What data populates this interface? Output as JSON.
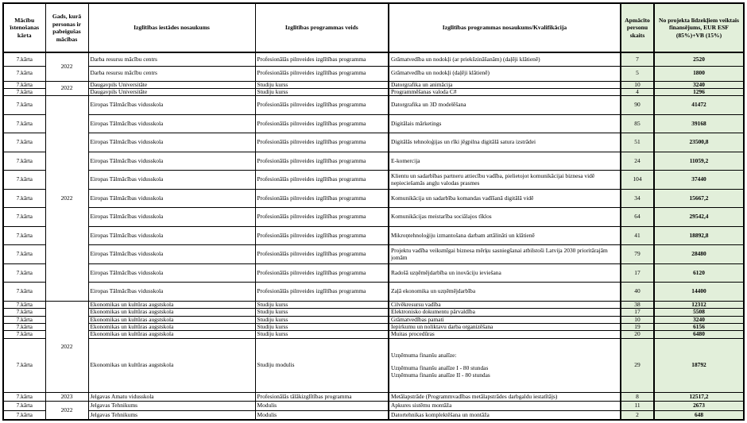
{
  "headers": {
    "stage": "Mācību īstenošanas kārta",
    "year": "Gads, kurā personas ir pabeigušas mācības",
    "institution": "Izglītības iestādes nosaukums",
    "program_type": "Izglītības programmas veids",
    "program_name": "Izglītības programmas nosaukums/Kvalifikācija",
    "persons": "Apmācīto personu skaits",
    "funding": "No projekta līdzekļiem veiktais finansējums, EUR ESF (85%)+VB (15%)"
  },
  "colors": {
    "highlight_column": "#e2efda"
  },
  "groups": [
    {
      "year": "2022",
      "rows": [
        {
          "stage": "7.kārta",
          "institution": "Darba resursu mācību centrs",
          "program_type": "Profesionālās pilnveides izglītības programma",
          "program_name": "Grāmatvedība un nodokļi (ar priekšzināšanām) (daļēji klātienē)",
          "persons": "7",
          "funding": "2520"
        },
        {
          "stage": "7.kārta",
          "institution": "Darba resursu mācību centrs",
          "program_type": "Profesionālās pilnveides izglītības programma",
          "program_name": "Grāmatvedība un nodokļi (daļēji klātienē)",
          "persons": "5",
          "funding": "1800"
        }
      ]
    },
    {
      "year": "2022",
      "rows": [
        {
          "stage": "7.kārta",
          "institution": "Daugavpils Universitāte",
          "program_type": "Studiju kurss",
          "program_name": "Datorgrafika un animācija",
          "persons": "10",
          "funding": "3240"
        },
        {
          "stage": "7.kārta",
          "institution": "Daugavpils Universitāte",
          "program_type": "Studiju kurss",
          "program_name": "Programmēšanas valoda C#",
          "persons": "4",
          "funding": "1296"
        }
      ]
    },
    {
      "year": "2022",
      "rows": [
        {
          "stage": "7.kārta",
          "institution": "Eiropas Tālmācības vidusskola",
          "program_type": "Profesionālās pilnveides izglītības programma",
          "program_name": "Datorgrafika un 3D modelēšana",
          "persons": "90",
          "funding": "41472"
        },
        {
          "stage": "7.kārta",
          "institution": "Eiropas Tālmācības vidusskola",
          "program_type": "Profesionālās pilnveides izglītības programma",
          "program_name": "Digitālais mārketings",
          "persons": "85",
          "funding": "39168"
        },
        {
          "stage": "7.kārta",
          "institution": "Eiropas Tālmācības vidusskola",
          "program_type": "Profesionālās pilnveides izglītības programma",
          "program_name": "Digitālās tehnoloģijas un rīki jēgpilna digitālā satura izstrādei",
          "persons": "51",
          "funding": "23500,8"
        },
        {
          "stage": "7.kārta",
          "institution": "Eiropas Tālmācības vidusskola",
          "program_type": "Profesionālās pilnveides izglītības programma",
          "program_name": "E-komercija",
          "persons": "24",
          "funding": "11059,2"
        },
        {
          "stage": "7.kārta",
          "institution": "Eiropas Tālmācības vidusskola",
          "program_type": "Profesionālās pilnveides izglītības programma",
          "program_name": "Klientu un sadarbības partneru attiecību vadība, pielietojot komunikācijai biznesa vidē nepieciešamās angļu valodas prasmes",
          "persons": "104",
          "funding": "37440"
        },
        {
          "stage": "7.kārta",
          "institution": "Eiropas Tālmācības vidusskola",
          "program_type": "Profesionālās pilnveides izglītības programma",
          "program_name": "Komunikācija un sadarbība komandas vadīšanā digitālā vidē",
          "persons": "34",
          "funding": "15667,2"
        },
        {
          "stage": "7.kārta",
          "institution": "Eiropas Tālmācības vidusskola",
          "program_type": "Profesionālās pilnveides izglītības programma",
          "program_name": "Komunikācijas meistarība sociālajos tīklos",
          "persons": "64",
          "funding": "29542,4"
        },
        {
          "stage": "7.kārta",
          "institution": "Eiropas Tālmācības vidusskola",
          "program_type": "Profesionālās pilnveides izglītības programma",
          "program_name": "Mikroņtehnoloģiju izmantošana darbam attālināti un klātienē",
          "persons": "41",
          "funding": "18892,8"
        },
        {
          "stage": "7.kārta",
          "institution": "Eiropas Tālmācības vidusskola",
          "program_type": "Profesionālās pilnveides izglītības programma",
          "program_name": "Projektu vadība veiksmīgai biznesa mērķu sasniegšanai atbilstoši Latvija 2030 prioritārajām jomām",
          "persons": "79",
          "funding": "28480"
        },
        {
          "stage": "7.kārta",
          "institution": "Eiropas Tālmācības vidusskola",
          "program_type": "Profesionālās pilnveides izglītības programma",
          "program_name": "Radošā uzņēmējdarbība un inovāciju ieviešana",
          "persons": "17",
          "funding": "6120"
        },
        {
          "stage": "7.kārta",
          "institution": "Eiropas Tālmācības vidusskola",
          "program_type": "Profesionālās pilnveides izglītības programma",
          "program_name": "Zaļā ekonomika un uzņēmējdarbība",
          "persons": "40",
          "funding": "14400"
        }
      ]
    },
    {
      "year": "2022",
      "rows": [
        {
          "stage": "7.kārta",
          "institution": "Ekonomikas un kultūras augstskola",
          "program_type": "Studiju kurss",
          "program_name": "Cilvēkresursu vadība",
          "persons": "38",
          "funding": "12312"
        },
        {
          "stage": "7.kārta",
          "institution": "Ekonomikas un kultūras augstskola",
          "program_type": "Studiju kurss",
          "program_name": "Elektronisko dokumentu pārvaldība",
          "persons": "17",
          "funding": "5508"
        },
        {
          "stage": "7.kārta",
          "institution": "Ekonomikas un kultūras augstskola",
          "program_type": "Studiju kurss",
          "program_name": "Grāmatvedības pamati",
          "persons": "10",
          "funding": "3240"
        },
        {
          "stage": "7.kārta",
          "institution": "Ekonomikas un kultūras augstskola",
          "program_type": "Studiju kurss",
          "program_name": "Iepirkumu un noliktavu darba organizēšana",
          "persons": "19",
          "funding": "6156"
        },
        {
          "stage": "7.kārta",
          "institution": "Ekonomikas un kultūras augstskola",
          "program_type": "Studiju kurss",
          "program_name": "Muitas procedūras",
          "persons": "20",
          "funding": "6480"
        },
        {
          "stage": "7.kārta",
          "institution": "Ekonomikas un kultūras augstskola",
          "program_type": "Studiju modulis",
          "program_name": "Uzņēmuma finanšu analīze:\n\nUzņēmuma finanšu analīze I - 80 stundas\nUzņēmuma finanšu analīze II - 80 stundas",
          "persons": "29",
          "funding": "18792"
        }
      ]
    },
    {
      "year": "2023",
      "rows": [
        {
          "stage": "7.kārta",
          "institution": "Jelgavas Amatu vidusskola",
          "program_type": "Profesionālās tālākizglītības programma",
          "program_name": "Metālapstrāde (Programmvadības metālapstrādes darbgaldu iestatītājs)",
          "persons": "8",
          "funding": "12517,2"
        }
      ]
    },
    {
      "year": "2022",
      "rows": [
        {
          "stage": "7.kārta",
          "institution": "Jelgavas Tehnikums",
          "program_type": "Modulis",
          "program_name": "Apkures sistēmu montāža",
          "persons": "11",
          "funding": "2673"
        },
        {
          "stage": "7.kārta",
          "institution": "Jelgavas Tehnikums",
          "program_type": "Modulis",
          "program_name": "Datortehnikas komplektēšana un montāža",
          "persons": "2",
          "funding": "648"
        }
      ]
    }
  ]
}
